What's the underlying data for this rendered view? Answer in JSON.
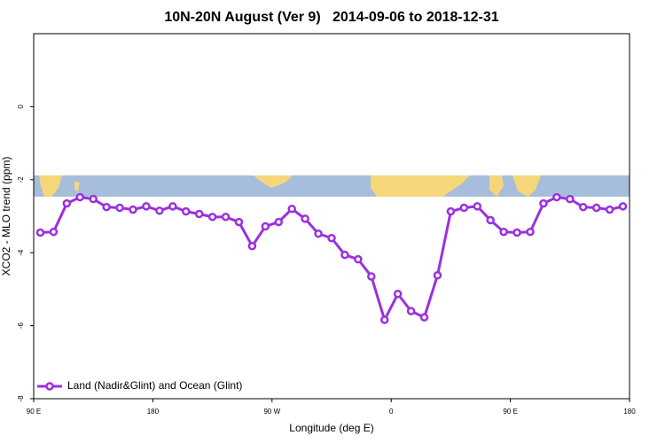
{
  "chart_data": {
    "type": "line",
    "title": "10N-20N August (Ver 9)   2014-09-06 to 2018-12-31",
    "x_label": "Longitude (deg E)",
    "y_label": "XCO2 - MLO trend (ppm)",
    "xlim": [
      90,
      540
    ],
    "ylim": [
      -8,
      2
    ],
    "xticks": [
      {
        "value": 90,
        "label": "90 E"
      },
      180,
      {
        "value": 270,
        "label": "90 W"
      },
      {
        "value": 360,
        "label": "0"
      },
      {
        "value": 450,
        "label": "90 E"
      },
      {
        "value": 540,
        "label": "180"
      }
    ],
    "yticks": [
      -8,
      -6,
      -4,
      -2,
      0
    ],
    "legend": "bottom-left",
    "x": [
      95,
      105,
      115,
      125,
      135,
      145,
      155,
      165,
      175,
      185,
      195,
      205,
      215,
      225,
      235,
      245,
      255,
      265,
      275,
      285,
      295,
      305,
      315,
      325,
      335,
      345,
      355,
      365,
      375,
      385,
      395,
      405,
      415,
      425,
      435,
      445,
      455,
      465,
      475,
      485,
      495,
      505,
      515,
      525,
      535
    ],
    "series": [
      {
        "name": "Land (Nadir&Glint) and Ocean (Glint)",
        "color": "#9b30e0",
        "values": [
          -3.45,
          -3.43,
          -2.65,
          -2.48,
          -2.53,
          -2.75,
          -2.77,
          -2.82,
          -2.73,
          -2.85,
          -2.73,
          -2.87,
          -2.94,
          -3.02,
          -3.02,
          -3.16,
          -3.82,
          -3.28,
          -3.16,
          -2.8,
          -3.07,
          -3.48,
          -3.6,
          -4.06,
          -4.18,
          -4.65,
          -5.84,
          -5.13,
          -5.6,
          -5.77,
          -4.62,
          -2.87,
          -2.77,
          -2.73,
          -3.11,
          -3.43,
          -3.45,
          -3.43,
          -2.65,
          -2.48,
          -2.53,
          -2.75,
          -2.77,
          -2.82,
          -2.73
        ]
      }
    ]
  }
}
